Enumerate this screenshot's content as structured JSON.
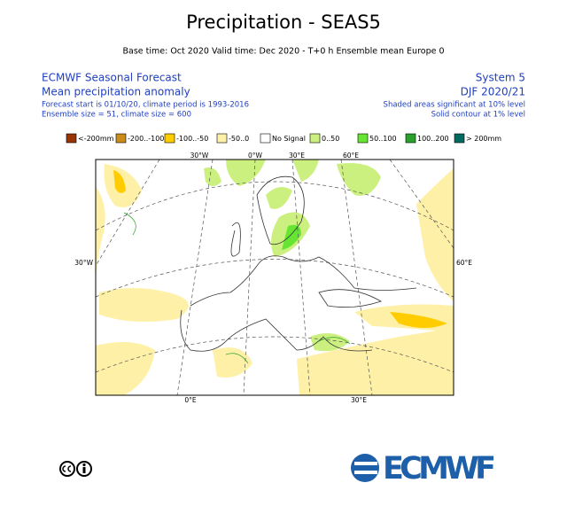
{
  "title": "Precipitation - SEAS5",
  "subtitle": "Base time: Oct 2020 Valid time: Dec 2020 - T+0 h Ensemble mean Europe 0",
  "header_left": [
    "ECMWF Seasonal Forecast",
    "Mean precipitation anomaly",
    "Forecast start is 01/10/20, climate period is 1993-2016",
    "Ensemble size = 51, climate size = 600"
  ],
  "header_right": [
    "System 5",
    "DJF 2020/21",
    "Shaded areas significant at 10% level",
    "Solid contour at 1% level"
  ],
  "legend": [
    {
      "label": "<-200mm",
      "color": "#993404"
    },
    {
      "label": "-200..-100",
      "color": "#cc8c1a"
    },
    {
      "label": "-100..-50",
      "color": "#ffcc00"
    },
    {
      "label": "-50..0",
      "color": "#fff0a8"
    },
    {
      "label": "No Signal",
      "color": "#ffffff"
    },
    {
      "label": "0..50",
      "color": "#ccf080"
    },
    {
      "label": "50..100",
      "color": "#66e633"
    },
    {
      "label": "100..200",
      "color": "#2ca02c"
    },
    {
      "label": "> 200mm",
      "color": "#006b5e"
    }
  ],
  "axis_labels": {
    "top": [
      "30°W",
      "0°W",
      "30°E",
      "60°E"
    ],
    "left": "30°W",
    "right": "60°E",
    "bottom": [
      "0°E",
      "30°E"
    ]
  },
  "logo": "ECMWF"
}
